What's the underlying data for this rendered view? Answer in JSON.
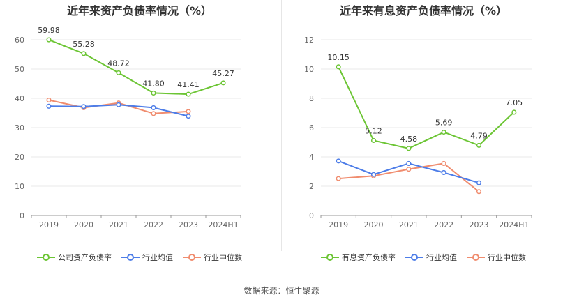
{
  "colors": {
    "green": "#6cc534",
    "blue": "#4d7de8",
    "orange": "#f08c6e",
    "grid": "#e8e8e8",
    "axis": "#999999",
    "text": "#333333"
  },
  "source": "数据来源：恒生聚源",
  "chart_data": [
    {
      "type": "line",
      "title": "近年来资产负债率情况（%）",
      "categories": [
        "2019",
        "2020",
        "2021",
        "2022",
        "2023",
        "2024H1"
      ],
      "ylim": [
        0,
        60
      ],
      "yticks": [
        0,
        10,
        20,
        30,
        40,
        50,
        60
      ],
      "grid": true,
      "legend_position": "bottom",
      "series": [
        {
          "name": "公司资产负债率",
          "color": "#6cc534",
          "labeled": true,
          "values": [
            59.98,
            55.28,
            48.72,
            41.8,
            41.41,
            45.27
          ],
          "labels": [
            "59.98",
            "55.28",
            "48.72",
            "41.80",
            "41.41",
            "45.27"
          ]
        },
        {
          "name": "行业均值",
          "color": "#4d7de8",
          "labeled": false,
          "values": [
            37.3,
            37.2,
            37.8,
            36.8,
            33.9,
            null
          ]
        },
        {
          "name": "行业中位数",
          "color": "#f08c6e",
          "labeled": false,
          "values": [
            39.4,
            36.8,
            38.4,
            34.8,
            35.5,
            null
          ]
        }
      ]
    },
    {
      "type": "line",
      "title": "近年来有息资产负债率情况（%）",
      "categories": [
        "2019",
        "2020",
        "2021",
        "2022",
        "2023",
        "2024H1"
      ],
      "ylim": [
        0,
        12
      ],
      "yticks": [
        0,
        2,
        4,
        6,
        8,
        10,
        12
      ],
      "grid": true,
      "legend_position": "bottom",
      "series": [
        {
          "name": "有息资产负债率",
          "color": "#6cc534",
          "labeled": true,
          "values": [
            10.15,
            5.12,
            4.58,
            5.69,
            4.79,
            7.05
          ],
          "labels": [
            "10.15",
            "5.12",
            "4.58",
            "5.69",
            "4.79",
            "7.05"
          ]
        },
        {
          "name": "行业均值",
          "color": "#4d7de8",
          "labeled": false,
          "values": [
            3.72,
            2.8,
            3.55,
            2.93,
            2.23,
            null
          ]
        },
        {
          "name": "行业中位数",
          "color": "#f08c6e",
          "labeled": false,
          "values": [
            2.52,
            2.7,
            3.16,
            3.55,
            1.63,
            null
          ]
        }
      ]
    }
  ]
}
